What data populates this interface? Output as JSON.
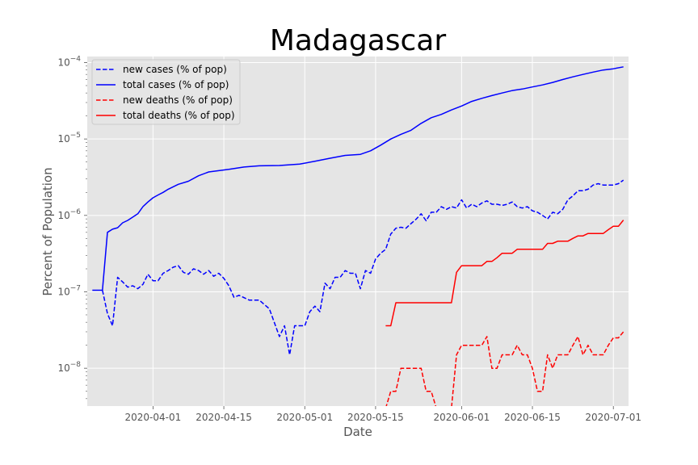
{
  "chart_data": {
    "type": "line",
    "title": "Madagascar",
    "xlabel": "Date",
    "ylabel": "Percent of Population",
    "yscale": "log",
    "ylim": [
      3.2e-09,
      0.00012
    ],
    "xlim": [
      "2020-03-19",
      "2020-07-04"
    ],
    "xticks": [
      "2020-04-01",
      "2020-04-15",
      "2020-05-01",
      "2020-05-15",
      "2020-06-01",
      "2020-06-15",
      "2020-07-01"
    ],
    "yticks": [
      {
        "value": 1e-08,
        "base": "10",
        "exp": "−8"
      },
      {
        "value": 1e-07,
        "base": "10",
        "exp": "−7"
      },
      {
        "value": 1e-06,
        "base": "10",
        "exp": "−6"
      },
      {
        "value": 1e-05,
        "base": "10",
        "exp": "−5"
      },
      {
        "value": 0.0001,
        "base": "10",
        "exp": "−4"
      }
    ],
    "grid": true,
    "legend_position": "top-left",
    "series": [
      {
        "name": "new cases (% of pop)",
        "color": "#0000ff",
        "style": "dashed",
        "x": [
          "2020-03-22",
          "2020-03-23",
          "2020-03-24",
          "2020-03-25",
          "2020-03-26",
          "2020-03-27",
          "2020-03-28",
          "2020-03-29",
          "2020-03-30",
          "2020-03-31",
          "2020-04-01",
          "2020-04-02",
          "2020-04-03",
          "2020-04-04",
          "2020-04-05",
          "2020-04-06",
          "2020-04-07",
          "2020-04-08",
          "2020-04-09",
          "2020-04-10",
          "2020-04-11",
          "2020-04-12",
          "2020-04-13",
          "2020-04-14",
          "2020-04-15",
          "2020-04-16",
          "2020-04-17",
          "2020-04-18",
          "2020-04-20",
          "2020-04-22",
          "2020-04-24",
          "2020-04-26",
          "2020-04-27",
          "2020-04-28",
          "2020-04-29",
          "2020-04-30",
          "2020-05-01",
          "2020-05-02",
          "2020-05-03",
          "2020-05-04",
          "2020-05-05",
          "2020-05-06",
          "2020-05-07",
          "2020-05-08",
          "2020-05-09",
          "2020-05-10",
          "2020-05-11",
          "2020-05-12",
          "2020-05-13",
          "2020-05-14",
          "2020-05-15",
          "2020-05-16",
          "2020-05-17",
          "2020-05-18",
          "2020-05-19",
          "2020-05-20",
          "2020-05-21",
          "2020-05-22",
          "2020-05-23",
          "2020-05-24",
          "2020-05-25",
          "2020-05-26",
          "2020-05-27",
          "2020-05-28",
          "2020-05-29",
          "2020-05-30",
          "2020-05-31",
          "2020-06-01",
          "2020-06-02",
          "2020-06-03",
          "2020-06-04",
          "2020-06-05",
          "2020-06-06",
          "2020-06-07",
          "2020-06-08",
          "2020-06-09",
          "2020-06-10",
          "2020-06-11",
          "2020-06-12",
          "2020-06-13",
          "2020-06-14",
          "2020-06-15",
          "2020-06-16",
          "2020-06-17",
          "2020-06-18",
          "2020-06-19",
          "2020-06-20",
          "2020-06-21",
          "2020-06-22",
          "2020-06-23",
          "2020-06-24",
          "2020-06-25",
          "2020-06-26",
          "2020-06-27",
          "2020-06-28",
          "2020-06-29",
          "2020-06-30",
          "2020-07-01",
          "2020-07-02",
          "2020-07-03"
        ],
        "y": [
          1.05e-07,
          5.2e-08,
          3.6e-08,
          1.55e-07,
          1.35e-07,
          1.15e-07,
          1.2e-07,
          1.1e-07,
          1.25e-07,
          1.7e-07,
          1.4e-07,
          1.4e-07,
          1.75e-07,
          1.9e-07,
          2.1e-07,
          2.2e-07,
          1.8e-07,
          1.7e-07,
          2e-07,
          1.9e-07,
          1.7e-07,
          1.9e-07,
          1.6e-07,
          1.75e-07,
          1.5e-07,
          1.2e-07,
          8.5e-08,
          9e-08,
          7.8e-08,
          7.8e-08,
          6e-08,
          2.6e-08,
          3.6e-08,
          1.5e-08,
          3.6e-08,
          3.6e-08,
          3.6e-08,
          5.5e-08,
          6.5e-08,
          5.5e-08,
          1.3e-07,
          1.1e-07,
          1.55e-07,
          1.55e-07,
          1.9e-07,
          1.75e-07,
          1.75e-07,
          1.1e-07,
          1.9e-07,
          1.75e-07,
          2.7e-07,
          3.2e-07,
          3.6e-07,
          5.7e-07,
          6.8e-07,
          7e-07,
          6.8e-07,
          7.8e-07,
          8.9e-07,
          1.05e-06,
          8.5e-07,
          1.1e-06,
          1.1e-06,
          1.3e-06,
          1.2e-06,
          1.3e-06,
          1.25e-06,
          1.6e-06,
          1.25e-06,
          1.4e-06,
          1.3e-06,
          1.45e-06,
          1.55e-06,
          1.4e-06,
          1.4e-06,
          1.35e-06,
          1.4e-06,
          1.5e-06,
          1.3e-06,
          1.25e-06,
          1.3e-06,
          1.15e-06,
          1.1e-06,
          1e-06,
          9e-07,
          1.1e-06,
          1.05e-06,
          1.2e-06,
          1.6e-06,
          1.8e-06,
          2.1e-06,
          2.1e-06,
          2.2e-06,
          2.5e-06,
          2.6e-06,
          2.5e-06,
          2.5e-06,
          2.5e-06,
          2.6e-06,
          2.9e-06
        ]
      },
      {
        "name": "total cases (% of pop)",
        "color": "#0000ff",
        "style": "solid",
        "x": [
          "2020-03-20",
          "2020-03-22",
          "2020-03-23",
          "2020-03-24",
          "2020-03-25",
          "2020-03-26",
          "2020-03-27",
          "2020-03-28",
          "2020-03-29",
          "2020-03-30",
          "2020-03-31",
          "2020-04-01",
          "2020-04-02",
          "2020-04-03",
          "2020-04-04",
          "2020-04-06",
          "2020-04-08",
          "2020-04-10",
          "2020-04-12",
          "2020-04-14",
          "2020-04-16",
          "2020-04-19",
          "2020-04-22",
          "2020-04-26",
          "2020-04-30",
          "2020-05-03",
          "2020-05-06",
          "2020-05-09",
          "2020-05-12",
          "2020-05-14",
          "2020-05-16",
          "2020-05-18",
          "2020-05-20",
          "2020-05-22",
          "2020-05-24",
          "2020-05-26",
          "2020-05-28",
          "2020-05-30",
          "2020-06-01",
          "2020-06-03",
          "2020-06-05",
          "2020-06-07",
          "2020-06-09",
          "2020-06-11",
          "2020-06-13",
          "2020-06-15",
          "2020-06-17",
          "2020-06-19",
          "2020-06-21",
          "2020-06-23",
          "2020-06-25",
          "2020-06-27",
          "2020-06-29",
          "2020-07-01",
          "2020-07-03"
        ],
        "y": [
          1.05e-07,
          1.05e-07,
          6e-07,
          6.6e-07,
          6.9e-07,
          8e-07,
          8.6e-07,
          9.5e-07,
          1.05e-06,
          1.3e-06,
          1.5e-06,
          1.7e-06,
          1.85e-06,
          2e-06,
          2.2e-06,
          2.55e-06,
          2.8e-06,
          3.3e-06,
          3.7e-06,
          3.85e-06,
          4e-06,
          4.3e-06,
          4.45e-06,
          4.5e-06,
          4.7e-06,
          5.1e-06,
          5.6e-06,
          6.1e-06,
          6.3e-06,
          7e-06,
          8.3e-06,
          1e-05,
          1.15e-05,
          1.3e-05,
          1.6e-05,
          1.9e-05,
          2.1e-05,
          2.4e-05,
          2.7e-05,
          3.1e-05,
          3.4e-05,
          3.7e-05,
          4e-05,
          4.3e-05,
          4.5e-05,
          4.8e-05,
          5.1e-05,
          5.5e-05,
          6e-05,
          6.5e-05,
          7e-05,
          7.5e-05,
          8e-05,
          8.3e-05,
          8.8e-05
        ]
      },
      {
        "name": "new deaths (% of pop)",
        "color": "#ff0000",
        "style": "dashed",
        "x": [
          "2020-05-17",
          "2020-05-18",
          "2020-05-19",
          "2020-05-20",
          "2020-05-21",
          "2020-05-22",
          "2020-05-23",
          "2020-05-24",
          "2020-05-25",
          "2020-05-26",
          "2020-05-27",
          "2020-05-28",
          "2020-05-29",
          "2020-05-30",
          "2020-05-31",
          "2020-06-01",
          "2020-06-02",
          "2020-06-03",
          "2020-06-04",
          "2020-06-05",
          "2020-06-06",
          "2020-06-07",
          "2020-06-08",
          "2020-06-09",
          "2020-06-10",
          "2020-06-11",
          "2020-06-12",
          "2020-06-13",
          "2020-06-14",
          "2020-06-15",
          "2020-06-16",
          "2020-06-17",
          "2020-06-18",
          "2020-06-19",
          "2020-06-20",
          "2020-06-21",
          "2020-06-22",
          "2020-06-23",
          "2020-06-24",
          "2020-06-25",
          "2020-06-26",
          "2020-06-27",
          "2020-06-28",
          "2020-06-29",
          "2020-06-30",
          "2020-07-01",
          "2020-07-02",
          "2020-07-03"
        ],
        "y": [
          3e-09,
          5e-09,
          5e-09,
          1e-08,
          1e-08,
          1e-08,
          1e-08,
          1e-08,
          5e-09,
          5e-09,
          3e-09,
          3e-09,
          3e-09,
          3e-09,
          1.5e-08,
          2e-08,
          2e-08,
          2e-08,
          2e-08,
          2e-08,
          2.6e-08,
          1e-08,
          1e-08,
          1.5e-08,
          1.5e-08,
          1.5e-08,
          2e-08,
          1.5e-08,
          1.5e-08,
          1e-08,
          5e-09,
          5e-09,
          1.5e-08,
          1e-08,
          1.5e-08,
          1.5e-08,
          1.5e-08,
          2e-08,
          2.6e-08,
          1.5e-08,
          2e-08,
          1.5e-08,
          1.5e-08,
          1.5e-08,
          2e-08,
          2.5e-08,
          2.5e-08,
          3e-08
        ]
      },
      {
        "name": "total deaths (% of pop)",
        "color": "#ff0000",
        "style": "solid",
        "x": [
          "2020-05-17",
          "2020-05-18",
          "2020-05-19",
          "2020-05-20",
          "2020-05-21",
          "2020-05-22",
          "2020-05-23",
          "2020-05-24",
          "2020-05-25",
          "2020-05-26",
          "2020-05-27",
          "2020-05-28",
          "2020-05-29",
          "2020-05-30",
          "2020-05-31",
          "2020-06-01",
          "2020-06-02",
          "2020-06-03",
          "2020-06-04",
          "2020-06-05",
          "2020-06-06",
          "2020-06-07",
          "2020-06-08",
          "2020-06-09",
          "2020-06-10",
          "2020-06-11",
          "2020-06-12",
          "2020-06-13",
          "2020-06-14",
          "2020-06-15",
          "2020-06-16",
          "2020-06-17",
          "2020-06-18",
          "2020-06-19",
          "2020-06-20",
          "2020-06-21",
          "2020-06-22",
          "2020-06-23",
          "2020-06-24",
          "2020-06-25",
          "2020-06-26",
          "2020-06-27",
          "2020-06-28",
          "2020-06-29",
          "2020-06-30",
          "2020-07-01",
          "2020-07-02",
          "2020-07-03"
        ],
        "y": [
          3.6e-08,
          3.6e-08,
          7.2e-08,
          7.2e-08,
          7.2e-08,
          7.2e-08,
          7.2e-08,
          7.2e-08,
          7.2e-08,
          7.2e-08,
          7.2e-08,
          7.2e-08,
          7.2e-08,
          7.2e-08,
          1.8e-07,
          2.2e-07,
          2.2e-07,
          2.2e-07,
          2.2e-07,
          2.2e-07,
          2.5e-07,
          2.5e-07,
          2.8e-07,
          3.2e-07,
          3.2e-07,
          3.2e-07,
          3.6e-07,
          3.6e-07,
          3.6e-07,
          3.6e-07,
          3.6e-07,
          3.6e-07,
          4.3e-07,
          4.3e-07,
          4.6e-07,
          4.6e-07,
          4.6e-07,
          5e-07,
          5.4e-07,
          5.4e-07,
          5.8e-07,
          5.8e-07,
          5.8e-07,
          5.8e-07,
          6.5e-07,
          7.2e-07,
          7.2e-07,
          8.7e-07
        ]
      }
    ]
  }
}
